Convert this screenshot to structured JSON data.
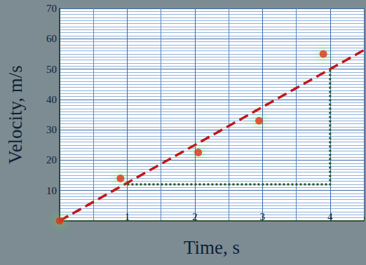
{
  "chart_data": {
    "type": "scatter",
    "x_label": "Time, s",
    "y_label": "Velocity, m/s",
    "xlim": [
      0,
      4.5
    ],
    "ylim": [
      0,
      70
    ],
    "xticks": [
      1,
      2,
      3,
      4
    ],
    "yticks": [
      10,
      20,
      30,
      40,
      50,
      60,
      70
    ],
    "grid": true,
    "series": [
      {
        "type": "scatter",
        "color": "#dd1111",
        "marker": "circle",
        "x": [
          0,
          0.9,
          2.05,
          2.95,
          3.9
        ],
        "values": [
          0,
          14,
          22.5,
          33,
          55
        ]
      },
      {
        "type": "line",
        "color": "#c01818",
        "line_style": "dashed",
        "x": [
          0,
          4.5
        ],
        "values": [
          0,
          56.25
        ]
      },
      {
        "type": "line",
        "color": "#1d5a1d",
        "line_style": "dotted",
        "x": [
          1,
          4,
          4
        ],
        "values": [
          12,
          12,
          50
        ]
      }
    ]
  }
}
